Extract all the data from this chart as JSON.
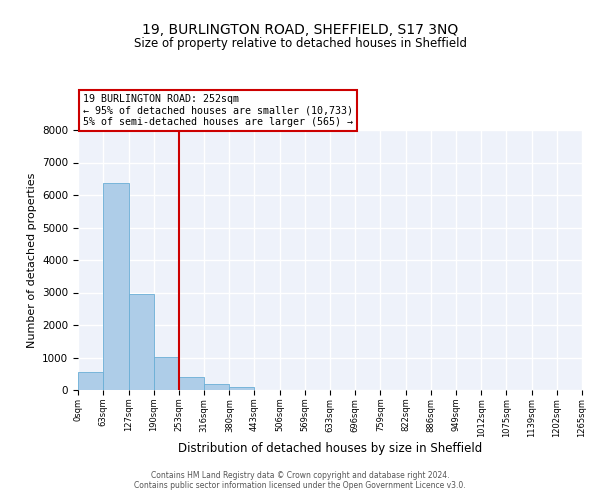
{
  "title": "19, BURLINGTON ROAD, SHEFFIELD, S17 3NQ",
  "subtitle": "Size of property relative to detached houses in Sheffield",
  "xlabel": "Distribution of detached houses by size in Sheffield",
  "ylabel": "Number of detached properties",
  "bar_edges": [
    0,
    63,
    127,
    190,
    253,
    316,
    380,
    443,
    506,
    569,
    633,
    696,
    759,
    822,
    886,
    949,
    1012,
    1075,
    1139,
    1202,
    1265
  ],
  "bar_heights": [
    560,
    6380,
    2940,
    1010,
    390,
    175,
    90,
    0,
    0,
    0,
    0,
    0,
    0,
    0,
    0,
    0,
    0,
    0,
    0,
    0
  ],
  "bar_color": "#aecde8",
  "bar_edgecolor": "#6aaed6",
  "vline_x": 253,
  "vline_color": "#cc0000",
  "ylim": [
    0,
    8000
  ],
  "yticks": [
    0,
    1000,
    2000,
    3000,
    4000,
    5000,
    6000,
    7000,
    8000
  ],
  "xtick_labels": [
    "0sqm",
    "63sqm",
    "127sqm",
    "190sqm",
    "253sqm",
    "316sqm",
    "380sqm",
    "443sqm",
    "506sqm",
    "569sqm",
    "633sqm",
    "696sqm",
    "759sqm",
    "822sqm",
    "886sqm",
    "949sqm",
    "1012sqm",
    "1075sqm",
    "1139sqm",
    "1202sqm",
    "1265sqm"
  ],
  "annotation_title": "19 BURLINGTON ROAD: 252sqm",
  "annotation_line1": "← 95% of detached houses are smaller (10,733)",
  "annotation_line2": "5% of semi-detached houses are larger (565) →",
  "annotation_box_color": "#ffffff",
  "annotation_box_edgecolor": "#cc0000",
  "footer1": "Contains HM Land Registry data © Crown copyright and database right 2024.",
  "footer2": "Contains public sector information licensed under the Open Government Licence v3.0.",
  "bg_color": "#eef2fa",
  "grid_color": "#ffffff",
  "fig_bg_color": "#ffffff"
}
